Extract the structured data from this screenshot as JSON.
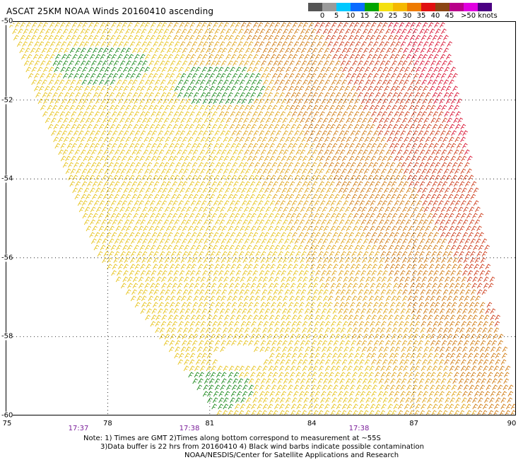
{
  "title": "ASCAT 25KM NOAA Winds 20160410 ascending",
  "legend": {
    "labels": [
      "0",
      "5",
      "10",
      "15",
      "20",
      "25",
      "30",
      "35",
      "40",
      "45",
      ">50 knots"
    ],
    "colors": [
      "#555555",
      "#9a9a9a",
      "#00c8ff",
      "#0a6cff",
      "#00a400",
      "#f4e010",
      "#f5b800",
      "#ee7a00",
      "#e01010",
      "#8b4513",
      "#b8008a",
      "#e000e0",
      "#4b0082"
    ]
  },
  "map": {
    "lon_range": [
      75,
      90
    ],
    "lat_range": [
      -60,
      -50
    ],
    "lon_ticks": [
      "75",
      "78",
      "81",
      "84",
      "87",
      "90"
    ],
    "lat_ticks": [
      "-50",
      "-52",
      "-54",
      "-56",
      "-58",
      "-60"
    ],
    "time_labels": [
      "17:37",
      "17:38",
      "17:38"
    ]
  },
  "notes": {
    "line1": "Note: 1) Times are GMT 2)Times along bottom correspond to measurement at ~55S",
    "line2": "3)Data buffer is 22 hrs from 20160410 4) Black wind barbs indicate possible contamination",
    "line3": "NOAA/NESDIS/Center for Satellite Applications and Research"
  }
}
